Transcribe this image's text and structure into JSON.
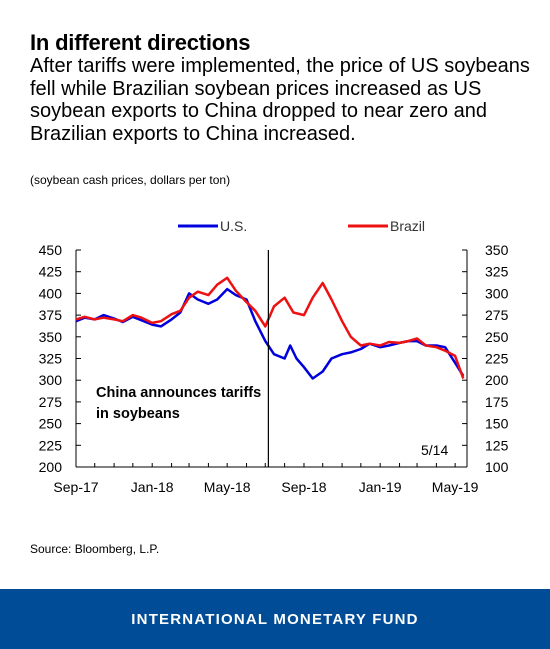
{
  "title": "In different directions",
  "subtitle": "After tariffs were implemented, the price of US soybeans fell while Brazilian soybean prices increased as US soybean exports to China dropped to near zero and Brazilian exports to China increased.",
  "units_note": "(soybean cash prices, dollars per ton)",
  "source": "Source: Bloomberg, L.P.",
  "footer": "INTERNATIONAL MONETARY FUND",
  "colors": {
    "us": "#0000dd",
    "brazil": "#ee1111",
    "footer_bg": "#004c97"
  },
  "chart_data": {
    "type": "line",
    "x_ticks": [
      "Sep-17",
      "Jan-18",
      "May-18",
      "Sep-18",
      "Jan-19",
      "May-19"
    ],
    "left_axis": {
      "ticks": [
        200,
        225,
        250,
        275,
        300,
        325,
        350,
        375,
        400,
        425,
        450
      ],
      "min": 200,
      "max": 450,
      "series": "U.S."
    },
    "right_axis": {
      "ticks": [
        100,
        125,
        150,
        175,
        200,
        225,
        250,
        275,
        300,
        325,
        350
      ],
      "min": 100,
      "max": 350,
      "series": "Brazil"
    },
    "legend_position": "top",
    "grid": false,
    "annotation": {
      "lines": [
        "China announces tariffs",
        "in soybeans"
      ],
      "x": "2018-07-06"
    },
    "end_label": "5/14",
    "series": [
      {
        "name": "U.S.",
        "axis": "left",
        "color": "#0000dd",
        "points": [
          [
            "2017-09-01",
            368
          ],
          [
            "2017-09-15",
            372
          ],
          [
            "2017-10-01",
            370
          ],
          [
            "2017-10-15",
            375
          ],
          [
            "2017-11-01",
            371
          ],
          [
            "2017-11-15",
            367
          ],
          [
            "2017-12-01",
            373
          ],
          [
            "2017-12-15",
            369
          ],
          [
            "2018-01-01",
            364
          ],
          [
            "2018-01-15",
            362
          ],
          [
            "2018-02-01",
            370
          ],
          [
            "2018-02-15",
            378
          ],
          [
            "2018-03-01",
            400
          ],
          [
            "2018-03-15",
            393
          ],
          [
            "2018-04-01",
            388
          ],
          [
            "2018-04-15",
            393
          ],
          [
            "2018-05-01",
            405
          ],
          [
            "2018-05-15",
            398
          ],
          [
            "2018-06-01",
            393
          ],
          [
            "2018-06-15",
            368
          ],
          [
            "2018-07-01",
            345
          ],
          [
            "2018-07-15",
            330
          ],
          [
            "2018-08-01",
            325
          ],
          [
            "2018-08-10",
            340
          ],
          [
            "2018-08-20",
            325
          ],
          [
            "2018-09-01",
            315
          ],
          [
            "2018-09-15",
            302
          ],
          [
            "2018-10-01",
            310
          ],
          [
            "2018-10-15",
            325
          ],
          [
            "2018-11-01",
            330
          ],
          [
            "2018-11-15",
            332
          ],
          [
            "2018-12-01",
            336
          ],
          [
            "2018-12-15",
            342
          ],
          [
            "2019-01-01",
            338
          ],
          [
            "2019-01-15",
            340
          ],
          [
            "2019-02-01",
            343
          ],
          [
            "2019-02-15",
            345
          ],
          [
            "2019-03-01",
            345
          ],
          [
            "2019-03-15",
            340
          ],
          [
            "2019-04-01",
            340
          ],
          [
            "2019-04-15",
            338
          ],
          [
            "2019-05-01",
            320
          ],
          [
            "2019-05-14",
            305
          ]
        ]
      },
      {
        "name": "Brazil",
        "axis": "right",
        "color": "#ee1111",
        "points": [
          [
            "2017-09-01",
            270
          ],
          [
            "2017-09-15",
            273
          ],
          [
            "2017-10-01",
            270
          ],
          [
            "2017-10-15",
            272
          ],
          [
            "2017-11-01",
            270
          ],
          [
            "2017-11-15",
            268
          ],
          [
            "2017-12-01",
            275
          ],
          [
            "2017-12-15",
            272
          ],
          [
            "2018-01-01",
            266
          ],
          [
            "2018-01-15",
            268
          ],
          [
            "2018-02-01",
            276
          ],
          [
            "2018-02-15",
            280
          ],
          [
            "2018-03-01",
            295
          ],
          [
            "2018-03-15",
            302
          ],
          [
            "2018-04-01",
            298
          ],
          [
            "2018-04-15",
            310
          ],
          [
            "2018-05-01",
            318
          ],
          [
            "2018-05-15",
            303
          ],
          [
            "2018-06-01",
            290
          ],
          [
            "2018-06-15",
            280
          ],
          [
            "2018-07-01",
            262
          ],
          [
            "2018-07-15",
            285
          ],
          [
            "2018-08-01",
            295
          ],
          [
            "2018-08-15",
            278
          ],
          [
            "2018-09-01",
            275
          ],
          [
            "2018-09-15",
            295
          ],
          [
            "2018-10-01",
            312
          ],
          [
            "2018-10-15",
            293
          ],
          [
            "2018-11-01",
            268
          ],
          [
            "2018-11-15",
            250
          ],
          [
            "2018-12-01",
            240
          ],
          [
            "2018-12-15",
            242
          ],
          [
            "2019-01-01",
            240
          ],
          [
            "2019-01-15",
            244
          ],
          [
            "2019-02-01",
            243
          ],
          [
            "2019-02-15",
            245
          ],
          [
            "2019-03-01",
            248
          ],
          [
            "2019-03-15",
            240
          ],
          [
            "2019-04-01",
            238
          ],
          [
            "2019-04-15",
            234
          ],
          [
            "2019-05-01",
            228
          ],
          [
            "2019-05-14",
            202
          ]
        ]
      }
    ]
  }
}
